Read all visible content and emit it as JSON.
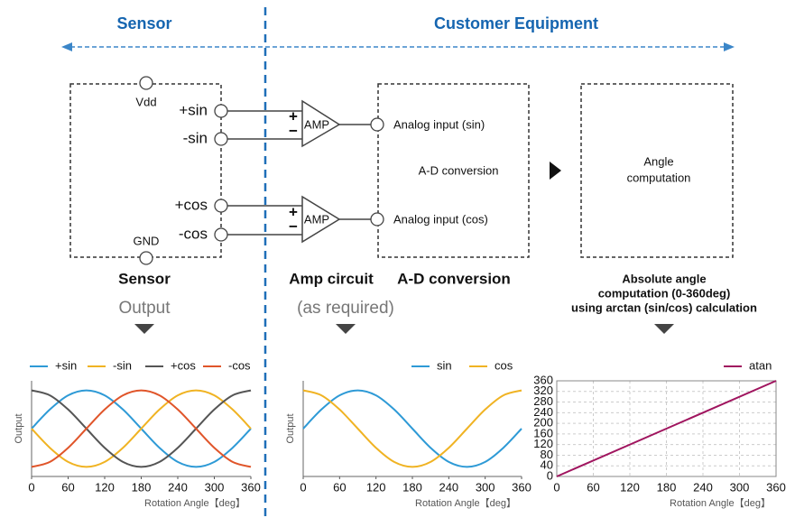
{
  "headers": {
    "sensor": "Sensor",
    "customer": "Customer Equipment"
  },
  "sensor_box": {
    "vdd": "Vdd",
    "gnd": "GND",
    "pins": [
      "+sin",
      "-sin",
      "+cos",
      "-cos"
    ]
  },
  "amps": [
    {
      "label": "AMP",
      "plus": "+",
      "minus": "−"
    },
    {
      "label": "AMP",
      "plus": "+",
      "minus": "−"
    }
  ],
  "inputs": [
    "Analog input (sin)",
    "Analog input (cos)"
  ],
  "ad_box": {
    "label": "A-D conversion"
  },
  "angle_box": {
    "lines": [
      "Angle",
      "computation"
    ]
  },
  "captions": {
    "sensor": "Sensor",
    "amp": "Amp circuit",
    "ad": "A-D conversion",
    "angle": [
      "Absolute angle",
      "computation (0-360deg)",
      "using arctan (sin/cos) calculation"
    ],
    "output": "Output",
    "as_required": "(as required)"
  },
  "chart_data": [
    {
      "type": "line",
      "ylabel": "Output",
      "xlabel": "Rotation Angle【deg】",
      "legend": "top-left",
      "x": [
        0,
        30,
        60,
        90,
        120,
        150,
        180,
        210,
        240,
        270,
        300,
        330,
        360
      ],
      "xlim": [
        0,
        360
      ],
      "xticks": [
        0,
        60,
        120,
        180,
        240,
        300,
        360
      ],
      "ylim": [
        -1.25,
        1.25
      ],
      "series": [
        {
          "name": "+sin",
          "color": "#2e9ad6",
          "values": [
            0,
            0.5,
            0.87,
            1,
            0.87,
            0.5,
            0,
            -0.5,
            -0.87,
            -1,
            -0.87,
            -0.5,
            0
          ]
        },
        {
          "name": "-sin",
          "color": "#f0b323",
          "values": [
            0,
            -0.5,
            -0.87,
            -1,
            -0.87,
            -0.5,
            0,
            0.5,
            0.87,
            1,
            0.87,
            0.5,
            0
          ]
        },
        {
          "name": "+cos",
          "color": "#555555",
          "values": [
            1,
            0.87,
            0.5,
            0,
            -0.5,
            -0.87,
            -1,
            -0.87,
            -0.5,
            0,
            0.5,
            0.87,
            1
          ]
        },
        {
          "name": "-cos",
          "color": "#e0552a",
          "values": [
            -1,
            -0.87,
            -0.5,
            0,
            0.5,
            0.87,
            1,
            0.87,
            0.5,
            0,
            -0.5,
            -0.87,
            -1
          ]
        }
      ]
    },
    {
      "type": "line",
      "ylabel": "Output",
      "xlabel": "Rotation Angle【deg】",
      "legend": "top-right",
      "x": [
        0,
        30,
        60,
        90,
        120,
        150,
        180,
        210,
        240,
        270,
        300,
        330,
        360
      ],
      "xlim": [
        0,
        360
      ],
      "xticks": [
        0,
        60,
        120,
        180,
        240,
        300,
        360
      ],
      "ylim": [
        -1.25,
        1.25
      ],
      "series": [
        {
          "name": "sin",
          "color": "#2e9ad6",
          "values": [
            0,
            0.5,
            0.87,
            1,
            0.87,
            0.5,
            0,
            -0.5,
            -0.87,
            -1,
            -0.87,
            -0.5,
            0
          ]
        },
        {
          "name": "cos",
          "color": "#f0b323",
          "values": [
            1,
            0.87,
            0.5,
            0,
            -0.5,
            -0.87,
            -1,
            -0.87,
            -0.5,
            0,
            0.5,
            0.87,
            1
          ]
        }
      ]
    },
    {
      "type": "line",
      "xlabel": "Rotation Angle【deg】",
      "legend": "top-right",
      "grid": true,
      "x": [
        0,
        360
      ],
      "xlim": [
        0,
        360
      ],
      "xticks": [
        0,
        60,
        120,
        180,
        240,
        300,
        360
      ],
      "ylim": [
        0,
        360
      ],
      "yticks": [
        0,
        40,
        80,
        120,
        160,
        200,
        240,
        280,
        320,
        360
      ],
      "series": [
        {
          "name": "atan",
          "color": "#a0155f",
          "values": [
            0,
            360
          ]
        }
      ]
    }
  ]
}
